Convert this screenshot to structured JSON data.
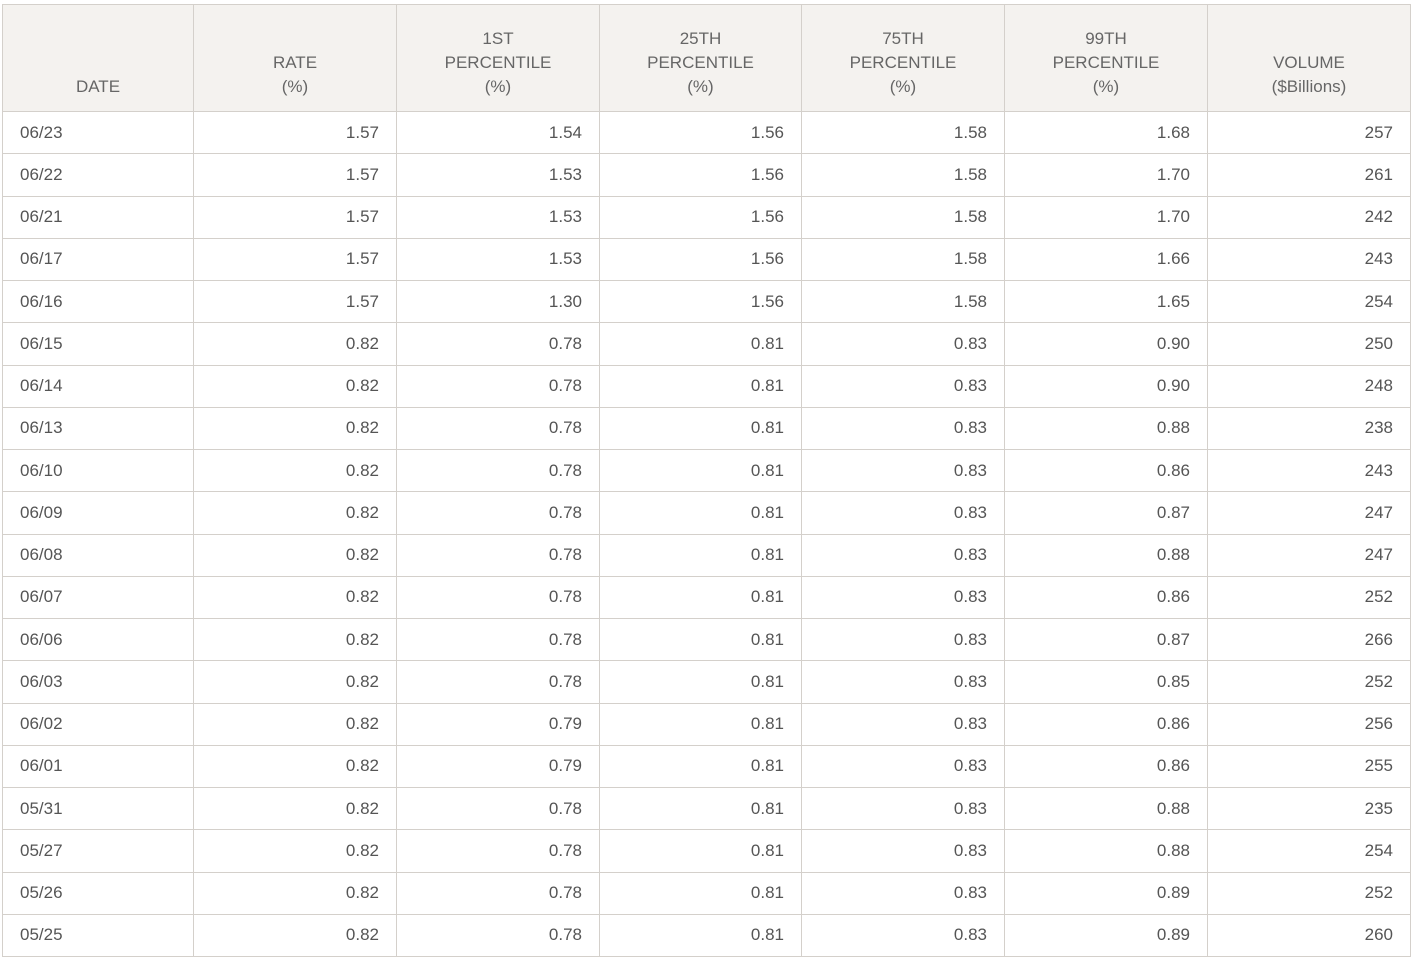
{
  "table": {
    "header": [
      [
        "DATE"
      ],
      [
        "RATE",
        "(%)"
      ],
      [
        "1ST",
        "PERCENTILE",
        "(%)"
      ],
      [
        "25TH",
        "PERCENTILE",
        "(%)"
      ],
      [
        "75TH",
        "PERCENTILE",
        "(%)"
      ],
      [
        "99TH",
        "PERCENTILE",
        "(%)"
      ],
      [
        "VOLUME",
        "($Billions)"
      ]
    ],
    "rows": [
      [
        "06/23",
        "1.57",
        "1.54",
        "1.56",
        "1.58",
        "1.68",
        "257"
      ],
      [
        "06/22",
        "1.57",
        "1.53",
        "1.56",
        "1.58",
        "1.70",
        "261"
      ],
      [
        "06/21",
        "1.57",
        "1.53",
        "1.56",
        "1.58",
        "1.70",
        "242"
      ],
      [
        "06/17",
        "1.57",
        "1.53",
        "1.56",
        "1.58",
        "1.66",
        "243"
      ],
      [
        "06/16",
        "1.57",
        "1.30",
        "1.56",
        "1.58",
        "1.65",
        "254"
      ],
      [
        "06/15",
        "0.82",
        "0.78",
        "0.81",
        "0.83",
        "0.90",
        "250"
      ],
      [
        "06/14",
        "0.82",
        "0.78",
        "0.81",
        "0.83",
        "0.90",
        "248"
      ],
      [
        "06/13",
        "0.82",
        "0.78",
        "0.81",
        "0.83",
        "0.88",
        "238"
      ],
      [
        "06/10",
        "0.82",
        "0.78",
        "0.81",
        "0.83",
        "0.86",
        "243"
      ],
      [
        "06/09",
        "0.82",
        "0.78",
        "0.81",
        "0.83",
        "0.87",
        "247"
      ],
      [
        "06/08",
        "0.82",
        "0.78",
        "0.81",
        "0.83",
        "0.88",
        "247"
      ],
      [
        "06/07",
        "0.82",
        "0.78",
        "0.81",
        "0.83",
        "0.86",
        "252"
      ],
      [
        "06/06",
        "0.82",
        "0.78",
        "0.81",
        "0.83",
        "0.87",
        "266"
      ],
      [
        "06/03",
        "0.82",
        "0.78",
        "0.81",
        "0.83",
        "0.85",
        "252"
      ],
      [
        "06/02",
        "0.82",
        "0.79",
        "0.81",
        "0.83",
        "0.86",
        "256"
      ],
      [
        "06/01",
        "0.82",
        "0.79",
        "0.81",
        "0.83",
        "0.86",
        "255"
      ],
      [
        "05/31",
        "0.82",
        "0.78",
        "0.81",
        "0.83",
        "0.88",
        "235"
      ],
      [
        "05/27",
        "0.82",
        "0.78",
        "0.81",
        "0.83",
        "0.88",
        "254"
      ],
      [
        "05/26",
        "0.82",
        "0.78",
        "0.81",
        "0.83",
        "0.89",
        "252"
      ],
      [
        "05/25",
        "0.82",
        "0.78",
        "0.81",
        "0.83",
        "0.89",
        "260"
      ]
    ]
  }
}
